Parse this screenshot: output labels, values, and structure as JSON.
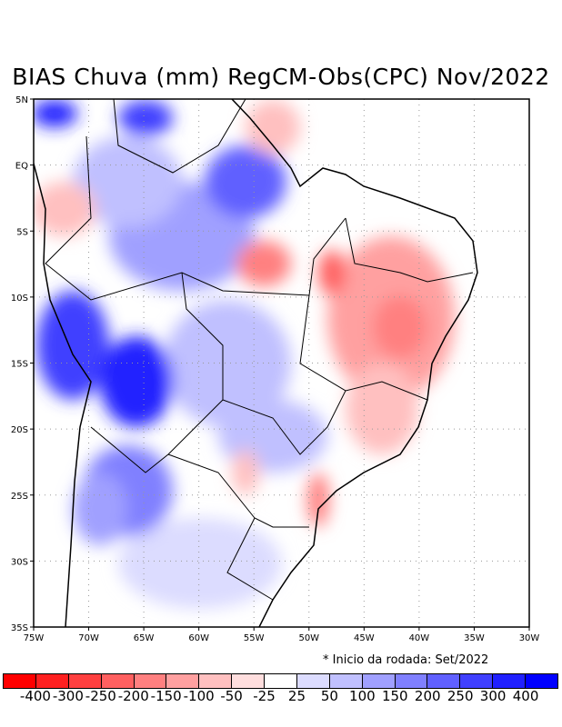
{
  "title": "BIAS Chuva (mm) RegCM-Obs(CPC) Nov/2022",
  "lat_ticks": [
    "5N",
    "EQ",
    "5S",
    "10S",
    "15S",
    "20S",
    "25S",
    "30S",
    "35S"
  ],
  "lon_ticks": [
    "75W",
    "70W",
    "65W",
    "60W",
    "55W",
    "50W",
    "45W",
    "40W",
    "35W",
    "30W"
  ],
  "note": "* Inicio da rodada: Set/2022",
  "colorbar": {
    "colors": [
      "#ff0000",
      "#ff2020",
      "#ff4040",
      "#ff6060",
      "#ff8080",
      "#ffa0a0",
      "#ffc0c0",
      "#ffdede",
      "#ffffff",
      "#dcdcff",
      "#c0c0ff",
      "#a0a0ff",
      "#8080ff",
      "#6060ff",
      "#4040ff",
      "#2020ff",
      "#0000ff"
    ],
    "labels": [
      "-400",
      "-300",
      "-250",
      "-200",
      "-150",
      "-100",
      "-50",
      "-25",
      "25",
      "50",
      "100",
      "150",
      "200",
      "250",
      "300",
      "400"
    ]
  }
}
